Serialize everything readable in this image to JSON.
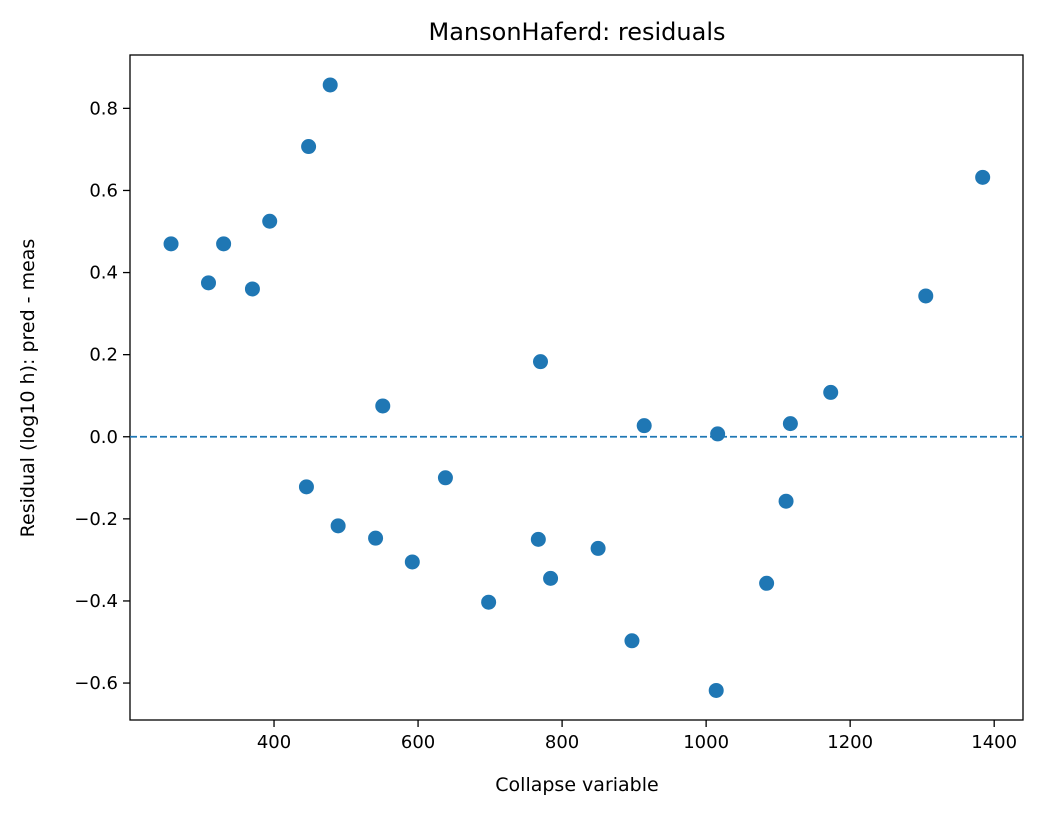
{
  "chart_data": {
    "type": "scatter",
    "title": "MansonHaferd: residuals",
    "xlabel": "Collapse variable",
    "ylabel": "Residual (log10 h): pred - meas",
    "xlim": [
      200,
      1440
    ],
    "ylim": [
      -0.69,
      0.93
    ],
    "xticks": [
      400,
      600,
      800,
      1000,
      1200,
      1400
    ],
    "yticks": [
      -0.6,
      -0.4,
      -0.2,
      0.0,
      0.2,
      0.4,
      0.6,
      0.8
    ],
    "ytick_labels": [
      "−0.6",
      "−0.4",
      "−0.2",
      "0.0",
      "0.2",
      "0.4",
      "0.6",
      "0.8"
    ],
    "reference_line": {
      "y": 0.0,
      "style": "dashed"
    },
    "grid": false,
    "marker_color": "#1f77b4",
    "points": [
      {
        "x": 257,
        "y": 0.47
      },
      {
        "x": 309,
        "y": 0.375
      },
      {
        "x": 330,
        "y": 0.47
      },
      {
        "x": 370,
        "y": 0.36
      },
      {
        "x": 394,
        "y": 0.525
      },
      {
        "x": 445,
        "y": -0.122
      },
      {
        "x": 448,
        "y": 0.707
      },
      {
        "x": 478,
        "y": 0.857
      },
      {
        "x": 489,
        "y": -0.217
      },
      {
        "x": 541,
        "y": -0.247
      },
      {
        "x": 551,
        "y": 0.075
      },
      {
        "x": 592,
        "y": -0.305
      },
      {
        "x": 638,
        "y": -0.1
      },
      {
        "x": 698,
        "y": -0.403
      },
      {
        "x": 767,
        "y": -0.25
      },
      {
        "x": 770,
        "y": 0.183
      },
      {
        "x": 784,
        "y": -0.345
      },
      {
        "x": 850,
        "y": -0.272
      },
      {
        "x": 897,
        "y": -0.497
      },
      {
        "x": 914,
        "y": 0.027
      },
      {
        "x": 1014,
        "y": -0.618
      },
      {
        "x": 1016,
        "y": 0.007
      },
      {
        "x": 1084,
        "y": -0.357
      },
      {
        "x": 1111,
        "y": -0.157
      },
      {
        "x": 1117,
        "y": 0.032
      },
      {
        "x": 1173,
        "y": 0.108
      },
      {
        "x": 1305,
        "y": 0.343
      },
      {
        "x": 1384,
        "y": 0.632
      }
    ]
  }
}
